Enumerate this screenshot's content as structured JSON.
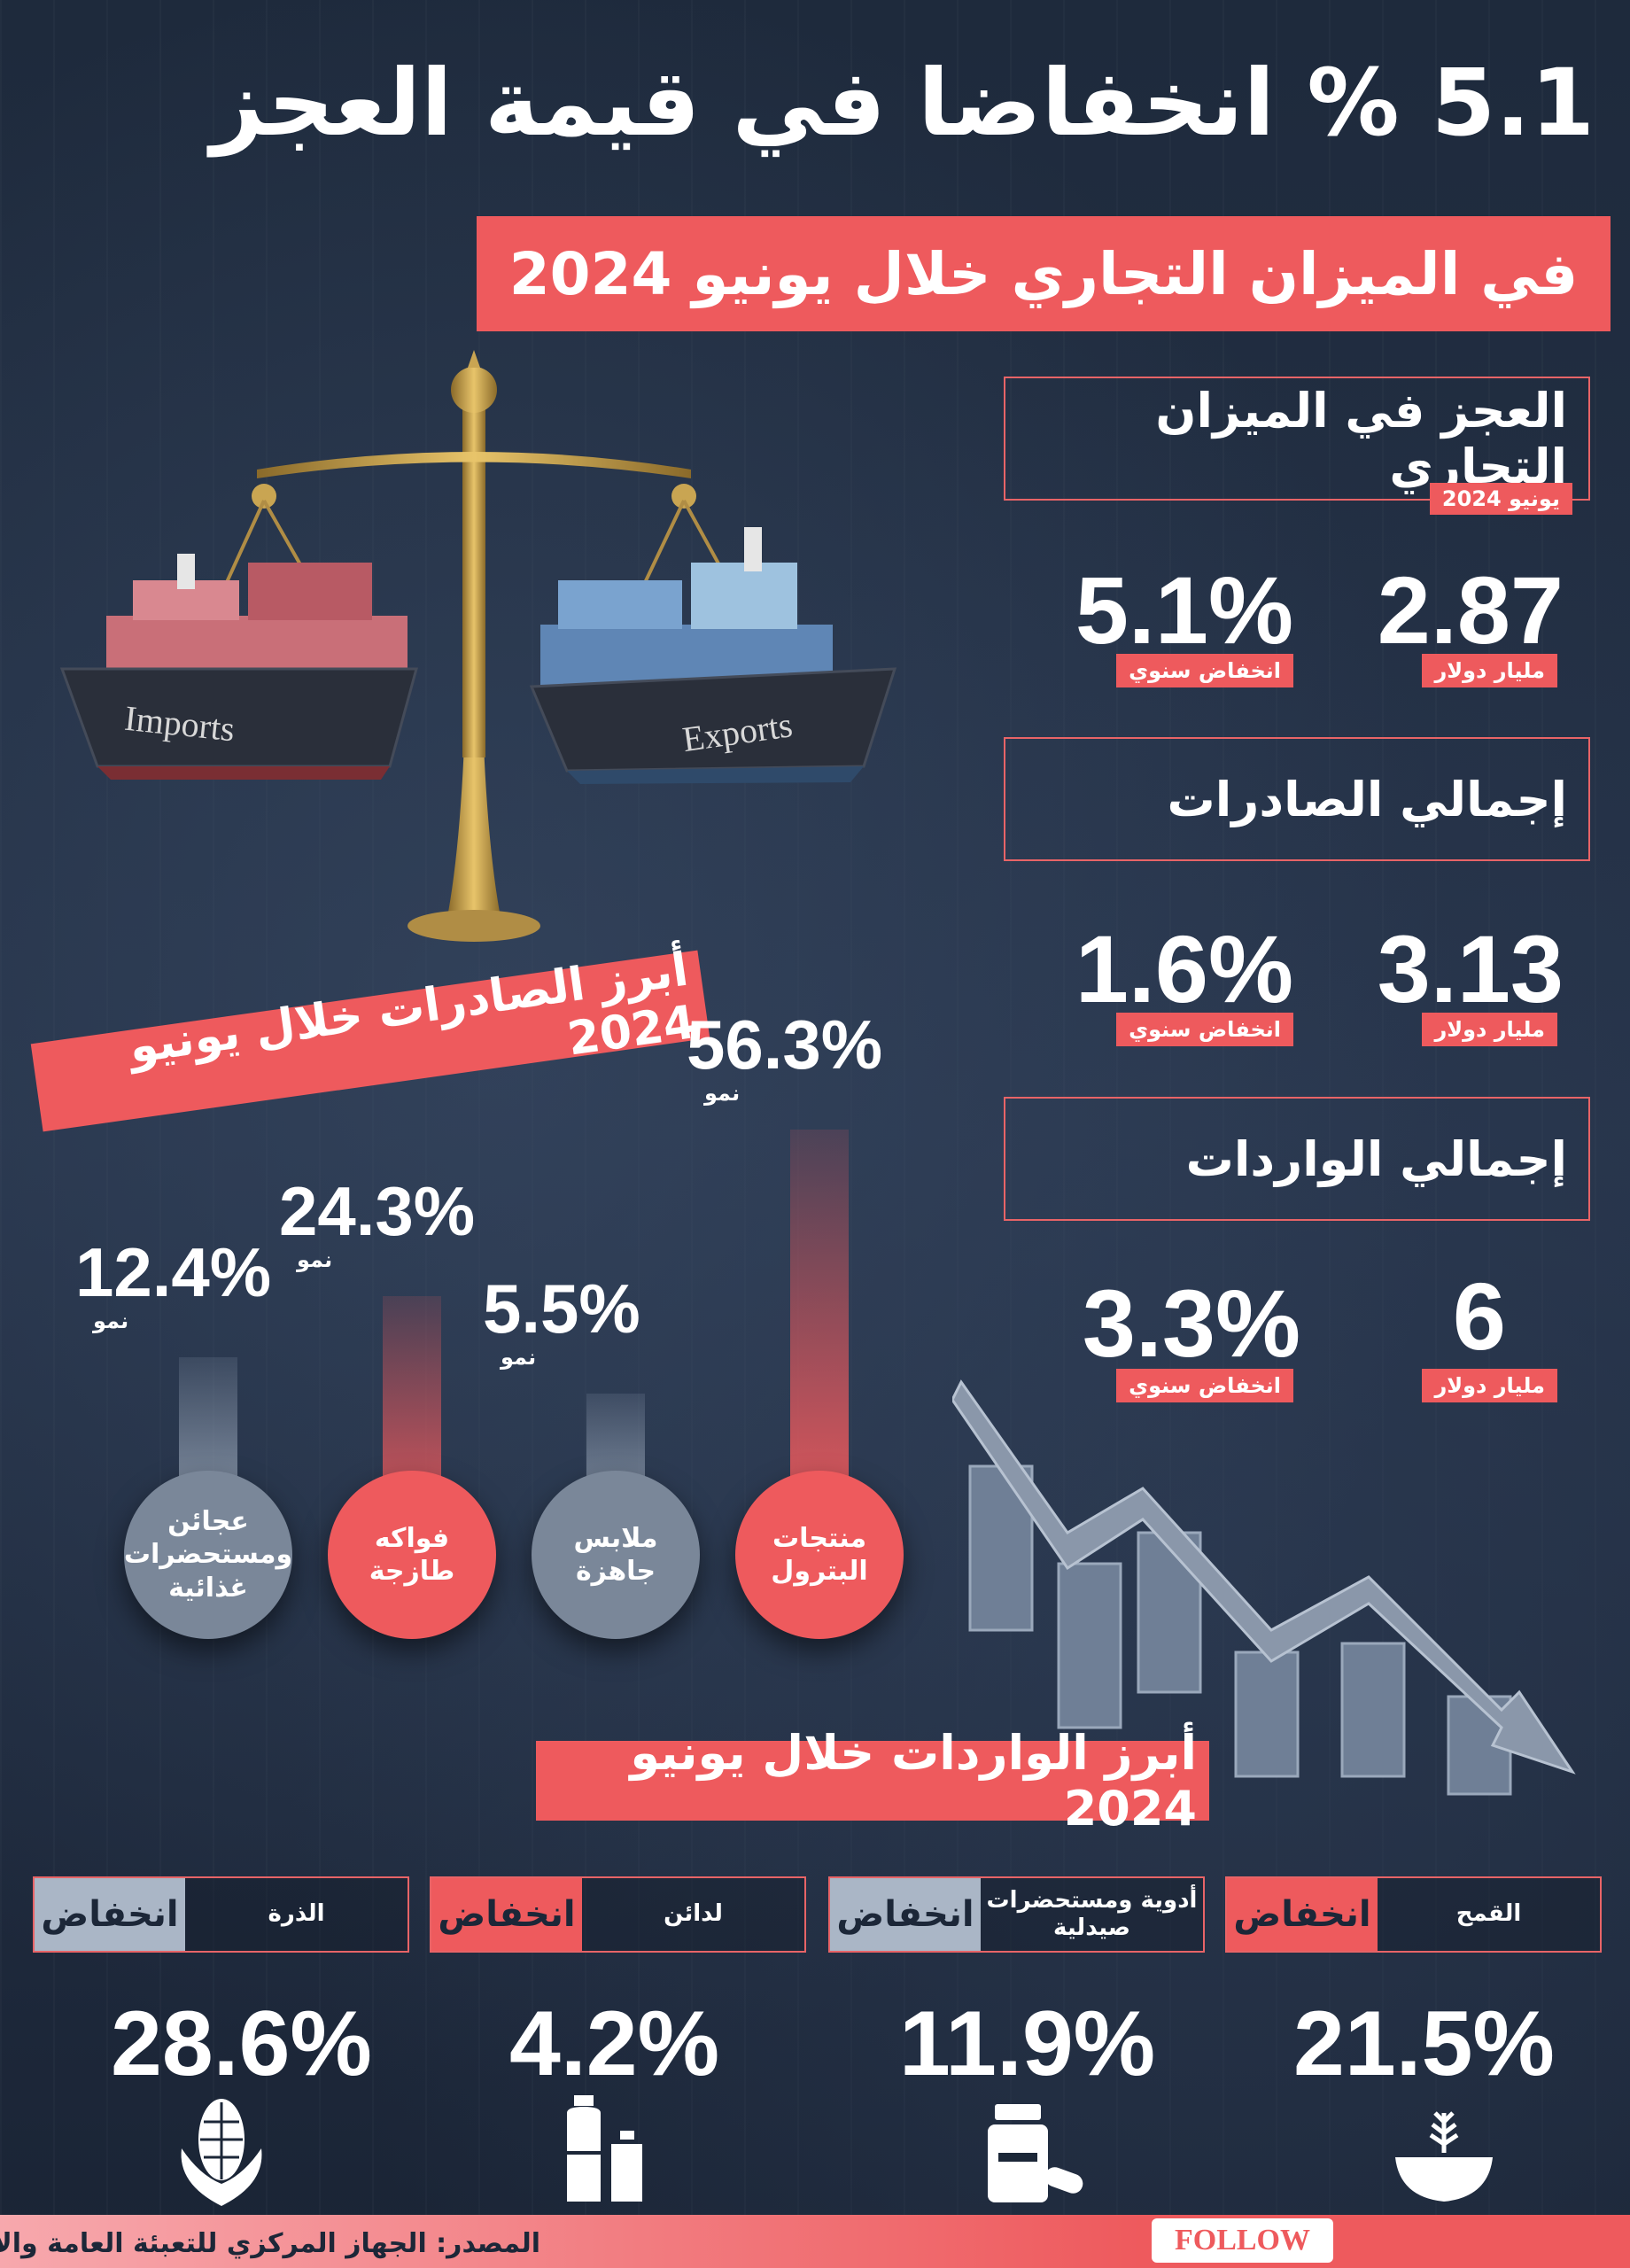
{
  "header": {
    "title": "5.1 % انخفاضا في قيمة العجز",
    "subtitle": "في الميزان التجاري خلال يونيو 2024"
  },
  "stats": {
    "deficit": {
      "label": "العجز في الميزان التجاري",
      "period": "يونيو 2024",
      "value": "2.87",
      "unit": "مليار دولار",
      "change": "5.1%",
      "change_label": "انخفاض سنوي"
    },
    "exports": {
      "label": "إجمالي الصادرات",
      "value": "3.13",
      "unit": "مليار دولار",
      "change": "1.6%",
      "change_label": "انخفاض سنوي"
    },
    "imports": {
      "label": "إجمالي الواردات",
      "value": "6",
      "unit": "مليار دولار",
      "change": "3.3%",
      "change_label": "انخفاض سنوي"
    }
  },
  "scale": {
    "left_ship": "Imports",
    "right_ship": "Exports"
  },
  "top_exports": {
    "title": "أبرز الصادرات خلال يونيو 2024",
    "items": [
      {
        "name": "منتجات البترول",
        "value": "56.3%",
        "label": "نمو",
        "growth": 56.3
      },
      {
        "name": "ملابس جاهزة",
        "value": "5.5%",
        "label": "نمو",
        "growth": 5.5
      },
      {
        "name": "فواكه طازجة",
        "value": "24.3%",
        "label": "نمو",
        "growth": 24.3
      },
      {
        "name": "عجائن ومستحضرات غذائية",
        "value": "12.4%",
        "label": "نمو",
        "growth": 12.4
      }
    ]
  },
  "top_imports": {
    "title": "أبرز الواردات خلال يونيو 2024",
    "items": [
      {
        "name": "القمح",
        "status": "انخفاض",
        "value": "21.5%",
        "icon": "wheat-bowl-icon"
      },
      {
        "name": "أدوية ومستحضرات صيدلية",
        "status": "انخفاض",
        "value": "11.9%",
        "icon": "medicine-icon"
      },
      {
        "name": "لدائن",
        "status": "انخفاض",
        "value": "4.2%",
        "icon": "plastic-bottles-icon"
      },
      {
        "name": "الذرة",
        "status": "انخفاض",
        "value": "28.6%",
        "icon": "corn-icon"
      }
    ]
  },
  "footer": {
    "source": "المصدر: الجهاز المركزي للتعبئة العامة والإحصاء",
    "logo": "FOLLOW"
  },
  "colors": {
    "accent": "#ee5a5d",
    "background": "#1c2738",
    "grey": "#7a8799"
  }
}
